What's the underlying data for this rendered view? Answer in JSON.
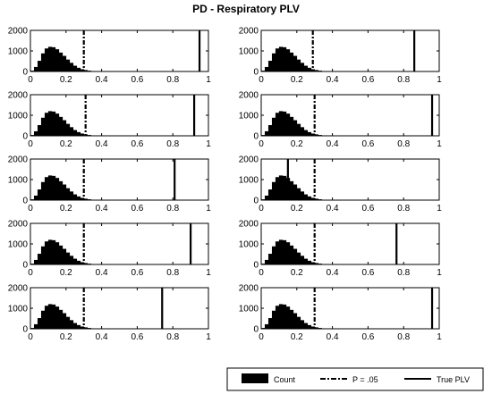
{
  "figure_title": "PD - Respiratory PLV",
  "colors": {
    "bar": "#000000",
    "axis": "#000000",
    "background": "#ffffff"
  },
  "legend": {
    "placement": "bottom-right",
    "items": [
      {
        "label": "Count",
        "style": "filled-box"
      },
      {
        "label": "P = .05",
        "style": "dash-dot-line"
      },
      {
        "label": "True PLV",
        "style": "solid-line"
      }
    ]
  },
  "chart_data": {
    "type": "bar",
    "title": "PD - Respiratory PLV",
    "layout": "5 rows x 2 columns of histograms",
    "xlim": [
      0,
      1
    ],
    "ylim": [
      0,
      2000
    ],
    "x_ticks": [
      "0",
      "0.2",
      "0.4",
      "0.6",
      "0.8",
      "1"
    ],
    "y_ticks": [
      "0",
      "1000",
      "2000"
    ],
    "bin_width": 0.02,
    "bin_edges_start": 0.0,
    "counts": [
      40,
      220,
      520,
      880,
      1120,
      1200,
      1180,
      1080,
      920,
      760,
      580,
      420,
      280,
      180,
      110,
      70,
      40,
      22,
      12,
      6
    ],
    "panels": [
      {
        "row": 1,
        "col": 1,
        "p05": 0.3,
        "true_plv": 0.95
      },
      {
        "row": 1,
        "col": 2,
        "p05": 0.29,
        "true_plv": 0.86
      },
      {
        "row": 2,
        "col": 1,
        "p05": 0.31,
        "true_plv": 0.92
      },
      {
        "row": 2,
        "col": 2,
        "p05": 0.3,
        "true_plv": 0.96
      },
      {
        "row": 3,
        "col": 1,
        "p05": 0.3,
        "true_plv": 0.81
      },
      {
        "row": 3,
        "col": 2,
        "p05": 0.3,
        "true_plv": 0.15
      },
      {
        "row": 4,
        "col": 1,
        "p05": 0.3,
        "true_plv": 0.9
      },
      {
        "row": 4,
        "col": 2,
        "p05": 0.3,
        "true_plv": 0.76
      },
      {
        "row": 5,
        "col": 1,
        "p05": 0.3,
        "true_plv": 0.74
      },
      {
        "row": 5,
        "col": 2,
        "p05": 0.3,
        "true_plv": 0.96
      }
    ]
  }
}
